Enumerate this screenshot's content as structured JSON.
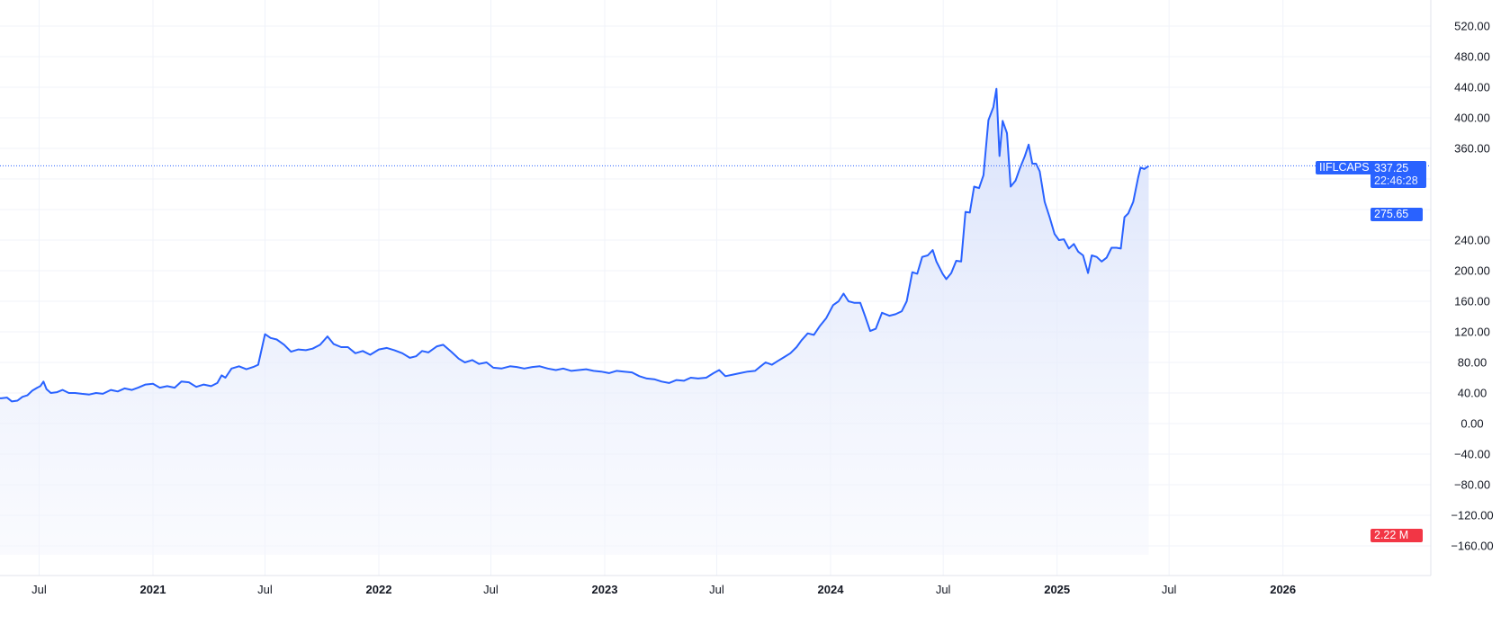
{
  "chart_data": {
    "type": "area",
    "symbol": "IIFLCAPS",
    "last_price": "337.25",
    "countdown": "22:46:28",
    "price_marker": "275.65",
    "volume_marker": "2.22 M",
    "ylim": [
      -160,
      560
    ],
    "y_ticks": [
      "520.00",
      "480.00",
      "440.00",
      "400.00",
      "360.00",
      "240.00",
      "200.00",
      "160.00",
      "120.00",
      "80.00",
      "40.00",
      "0.00",
      "−40.00",
      "−80.00",
      "−120.00",
      "−160.00"
    ],
    "x_ticks": [
      {
        "label": "Jul",
        "date": "2020-07-01",
        "year": false
      },
      {
        "label": "2021",
        "date": "2021-01-01",
        "year": true
      },
      {
        "label": "Jul",
        "date": "2021-07-01",
        "year": false
      },
      {
        "label": "2022",
        "date": "2022-01-01",
        "year": true
      },
      {
        "label": "Jul",
        "date": "2022-07-01",
        "year": false
      },
      {
        "label": "2023",
        "date": "2023-01-01",
        "year": true
      },
      {
        "label": "Jul",
        "date": "2023-07-01",
        "year": false
      },
      {
        "label": "2024",
        "date": "2024-01-01",
        "year": true
      },
      {
        "label": "Jul",
        "date": "2024-07-01",
        "year": false
      },
      {
        "label": "2025",
        "date": "2025-01-01",
        "year": true
      },
      {
        "label": "Jul",
        "date": "2025-07-01",
        "year": false
      },
      {
        "label": "2026",
        "date": "2026-01-01",
        "year": true
      }
    ],
    "colors": {
      "line": "#2962ff",
      "fill_top": "#d6e0fb",
      "fill_bottom": "#f4f6fd",
      "grid": "#f0f3fa",
      "tag_blue": "#2962ff",
      "tag_red": "#f23645"
    },
    "series": [
      {
        "values": [
          [
            "2020-05-01",
            33
          ],
          [
            "2020-05-10",
            34
          ],
          [
            "2020-05-18",
            29
          ],
          [
            "2020-05-27",
            30
          ],
          [
            "2020-06-04",
            35
          ],
          [
            "2020-06-12",
            37
          ],
          [
            "2020-06-20",
            43
          ],
          [
            "2020-06-28",
            47
          ],
          [
            "2020-07-03",
            49
          ],
          [
            "2020-07-08",
            55
          ],
          [
            "2020-07-13",
            45
          ],
          [
            "2020-07-20",
            40
          ],
          [
            "2020-07-30",
            41
          ],
          [
            "2020-08-08",
            44
          ],
          [
            "2020-08-18",
            40
          ],
          [
            "2020-08-28",
            40
          ],
          [
            "2020-09-08",
            39
          ],
          [
            "2020-09-20",
            38
          ],
          [
            "2020-10-01",
            40
          ],
          [
            "2020-10-12",
            39
          ],
          [
            "2020-10-25",
            44
          ],
          [
            "2020-11-05",
            42
          ],
          [
            "2020-11-16",
            46
          ],
          [
            "2020-11-28",
            44
          ],
          [
            "2020-12-08",
            47
          ],
          [
            "2020-12-20",
            51
          ],
          [
            "2021-01-01",
            52
          ],
          [
            "2021-01-12",
            47
          ],
          [
            "2021-01-24",
            49
          ],
          [
            "2021-02-05",
            47
          ],
          [
            "2021-02-16",
            55
          ],
          [
            "2021-02-28",
            54
          ],
          [
            "2021-03-12",
            48
          ],
          [
            "2021-03-24",
            51
          ],
          [
            "2021-04-05",
            49
          ],
          [
            "2021-04-15",
            53
          ],
          [
            "2021-04-22",
            63
          ],
          [
            "2021-04-28",
            60
          ],
          [
            "2021-05-08",
            72
          ],
          [
            "2021-05-20",
            75
          ],
          [
            "2021-06-01",
            71
          ],
          [
            "2021-06-12",
            74
          ],
          [
            "2021-06-20",
            77
          ],
          [
            "2021-07-01",
            117
          ],
          [
            "2021-07-10",
            112
          ],
          [
            "2021-07-20",
            110
          ],
          [
            "2021-08-01",
            103
          ],
          [
            "2021-08-12",
            94
          ],
          [
            "2021-08-24",
            97
          ],
          [
            "2021-09-05",
            96
          ],
          [
            "2021-09-16",
            98
          ],
          [
            "2021-09-28",
            103
          ],
          [
            "2021-10-10",
            114
          ],
          [
            "2021-10-20",
            104
          ],
          [
            "2021-11-01",
            100
          ],
          [
            "2021-11-12",
            100
          ],
          [
            "2021-11-24",
            92
          ],
          [
            "2021-12-06",
            95
          ],
          [
            "2021-12-18",
            90
          ],
          [
            "2022-01-01",
            97
          ],
          [
            "2022-01-14",
            99
          ],
          [
            "2022-01-26",
            96
          ],
          [
            "2022-02-08",
            92
          ],
          [
            "2022-02-20",
            86
          ],
          [
            "2022-03-02",
            88
          ],
          [
            "2022-03-12",
            95
          ],
          [
            "2022-03-22",
            93
          ],
          [
            "2022-04-05",
            101
          ],
          [
            "2022-04-15",
            103
          ],
          [
            "2022-04-28",
            94
          ],
          [
            "2022-05-10",
            85
          ],
          [
            "2022-05-20",
            80
          ],
          [
            "2022-06-01",
            83
          ],
          [
            "2022-06-12",
            78
          ],
          [
            "2022-06-24",
            80
          ],
          [
            "2022-07-05",
            73
          ],
          [
            "2022-07-18",
            72
          ],
          [
            "2022-08-01",
            75
          ],
          [
            "2022-08-12",
            74
          ],
          [
            "2022-08-24",
            72
          ],
          [
            "2022-09-06",
            74
          ],
          [
            "2022-09-18",
            75
          ],
          [
            "2022-10-01",
            72
          ],
          [
            "2022-10-14",
            70
          ],
          [
            "2022-10-26",
            72
          ],
          [
            "2022-11-08",
            69
          ],
          [
            "2022-11-20",
            70
          ],
          [
            "2022-12-02",
            71
          ],
          [
            "2022-12-14",
            69
          ],
          [
            "2022-12-26",
            68
          ],
          [
            "2023-01-08",
            66
          ],
          [
            "2023-01-20",
            69
          ],
          [
            "2023-02-01",
            68
          ],
          [
            "2023-02-14",
            67
          ],
          [
            "2023-02-26",
            62
          ],
          [
            "2023-03-10",
            59
          ],
          [
            "2023-03-22",
            58
          ],
          [
            "2023-04-03",
            55
          ],
          [
            "2023-04-15",
            53
          ],
          [
            "2023-04-27",
            57
          ],
          [
            "2023-05-09",
            56
          ],
          [
            "2023-05-20",
            60
          ],
          [
            "2023-06-01",
            59
          ],
          [
            "2023-06-14",
            60
          ],
          [
            "2023-06-26",
            66
          ],
          [
            "2023-07-05",
            70
          ],
          [
            "2023-07-15",
            62
          ],
          [
            "2023-07-27",
            64
          ],
          [
            "2023-08-08",
            66
          ],
          [
            "2023-08-20",
            68
          ],
          [
            "2023-09-01",
            69
          ],
          [
            "2023-09-10",
            75
          ],
          [
            "2023-09-18",
            80
          ],
          [
            "2023-09-28",
            77
          ],
          [
            "2023-10-08",
            82
          ],
          [
            "2023-10-18",
            87
          ],
          [
            "2023-10-28",
            92
          ],
          [
            "2023-11-07",
            100
          ],
          [
            "2023-11-15",
            109
          ],
          [
            "2023-11-25",
            118
          ],
          [
            "2023-12-05",
            116
          ],
          [
            "2023-12-15",
            128
          ],
          [
            "2023-12-25",
            138
          ],
          [
            "2024-01-05",
            155
          ],
          [
            "2024-01-14",
            160
          ],
          [
            "2024-01-22",
            170
          ],
          [
            "2024-01-30",
            160
          ],
          [
            "2024-02-08",
            158
          ],
          [
            "2024-02-18",
            158
          ],
          [
            "2024-02-26",
            140
          ],
          [
            "2024-03-05",
            121
          ],
          [
            "2024-03-14",
            124
          ],
          [
            "2024-03-24",
            145
          ],
          [
            "2024-04-05",
            141
          ],
          [
            "2024-04-15",
            143
          ],
          [
            "2024-04-25",
            147
          ],
          [
            "2024-05-03",
            160
          ],
          [
            "2024-05-12",
            198
          ],
          [
            "2024-05-20",
            196
          ],
          [
            "2024-05-28",
            218
          ],
          [
            "2024-06-06",
            220
          ],
          [
            "2024-06-14",
            227
          ],
          [
            "2024-06-20",
            212
          ],
          [
            "2024-06-30",
            196
          ],
          [
            "2024-07-06",
            189
          ],
          [
            "2024-07-14",
            197
          ],
          [
            "2024-07-22",
            213
          ],
          [
            "2024-07-30",
            212
          ],
          [
            "2024-08-06",
            277
          ],
          [
            "2024-08-13",
            276
          ],
          [
            "2024-08-20",
            310
          ],
          [
            "2024-08-28",
            308
          ],
          [
            "2024-09-04",
            325
          ],
          [
            "2024-09-12",
            397
          ],
          [
            "2024-09-20",
            414
          ],
          [
            "2024-09-25",
            438
          ],
          [
            "2024-09-30",
            350
          ],
          [
            "2024-10-05",
            396
          ],
          [
            "2024-10-12",
            380
          ],
          [
            "2024-10-18",
            310
          ],
          [
            "2024-10-26",
            318
          ],
          [
            "2024-11-02",
            334
          ],
          [
            "2024-11-10",
            350
          ],
          [
            "2024-11-16",
            365
          ],
          [
            "2024-11-22",
            340
          ],
          [
            "2024-11-28",
            340
          ],
          [
            "2024-12-04",
            330
          ],
          [
            "2024-12-12",
            290
          ],
          [
            "2024-12-20",
            270
          ],
          [
            "2024-12-28",
            248
          ],
          [
            "2025-01-04",
            240
          ],
          [
            "2025-01-12",
            241
          ],
          [
            "2025-01-20",
            229
          ],
          [
            "2025-01-28",
            235
          ],
          [
            "2025-02-04",
            225
          ],
          [
            "2025-02-12",
            220
          ],
          [
            "2025-02-20",
            197
          ],
          [
            "2025-02-26",
            220
          ],
          [
            "2025-03-06",
            218
          ],
          [
            "2025-03-14",
            212
          ],
          [
            "2025-03-22",
            217
          ],
          [
            "2025-03-30",
            230
          ],
          [
            "2025-04-07",
            230
          ],
          [
            "2025-04-14",
            229
          ],
          [
            "2025-04-20",
            270
          ],
          [
            "2025-04-26",
            275
          ],
          [
            "2025-05-04",
            290
          ],
          [
            "2025-05-12",
            322
          ],
          [
            "2025-05-16",
            335
          ],
          [
            "2025-05-22",
            333
          ],
          [
            "2025-05-29",
            337
          ]
        ]
      }
    ]
  }
}
